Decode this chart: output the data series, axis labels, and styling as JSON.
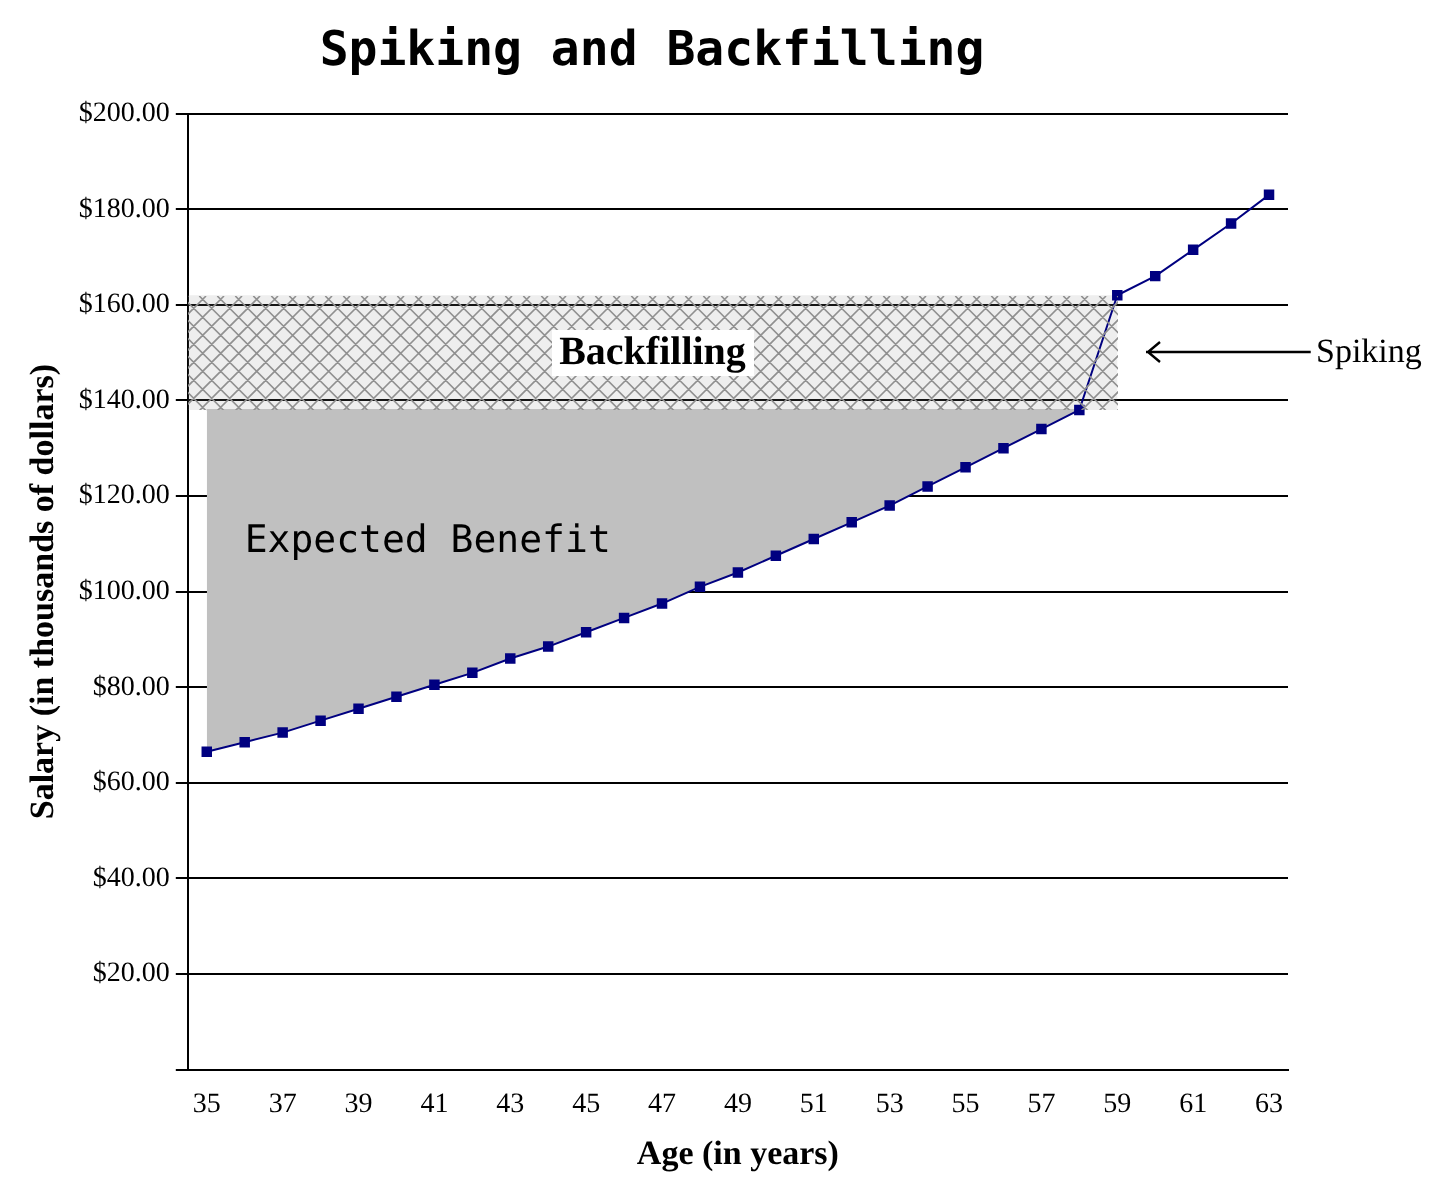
{
  "chart_data": {
    "type": "line",
    "title": "Spiking and Backfilling",
    "xlabel": "Age (in years)",
    "ylabel": "Salary (in thousands of dollars)",
    "categories": [
      "35",
      null,
      "37",
      null,
      "39",
      null,
      "41",
      null,
      "43",
      null,
      "45",
      null,
      "47",
      null,
      "49",
      null,
      "51",
      null,
      "53",
      null,
      "55",
      null,
      "57",
      null,
      "59",
      null,
      "61",
      null,
      "63"
    ],
    "series": [
      {
        "type": "line",
        "color": "#000080",
        "values": [
          66.5,
          68.5,
          70.5,
          73,
          75.5,
          78,
          80.5,
          83,
          86,
          88.5,
          91.5,
          94.5,
          97.5,
          101,
          104,
          107.5,
          111,
          114.5,
          118,
          122,
          126,
          130,
          134,
          138,
          162,
          166,
          171.5,
          177,
          183
        ]
      },
      {
        "type": "area",
        "color": "#c0c0c0",
        "marker": "none",
        "values": [
          138,
          138,
          138,
          138,
          138,
          138,
          138,
          138,
          138,
          138,
          138,
          138,
          138,
          138,
          138,
          138,
          138,
          138,
          138,
          138,
          138,
          138,
          138,
          138,
          null,
          null,
          null,
          null,
          null
        ]
      }
    ],
    "ylim": [
      0,
      200
    ],
    "yticks": [
      {
        "value": 0,
        "label": null
      },
      {
        "value": 20,
        "label": "$20.00"
      },
      {
        "value": 40,
        "label": "$40.00"
      },
      {
        "value": 60,
        "label": "$60.00"
      },
      {
        "value": 80,
        "label": "$80.00"
      },
      {
        "value": 100,
        "label": "$100.00"
      },
      {
        "value": 120,
        "label": "$120.00"
      },
      {
        "value": 140,
        "label": "$140.00"
      },
      {
        "value": 160,
        "label": "$160.00"
      },
      {
        "value": 180,
        "label": "$180.00"
      },
      {
        "value": 200,
        "label": "$200.00"
      }
    ],
    "bands": [
      {
        "axis": "y",
        "from": 138,
        "to": 162,
        "label": "Backfilling",
        "color": "#909090"
      }
    ],
    "annotations": [
      "Expected Benefit",
      "Spiking"
    ],
    "grid": "y",
    "marker": "square",
    "line_style": "solid",
    "legend": false
  }
}
